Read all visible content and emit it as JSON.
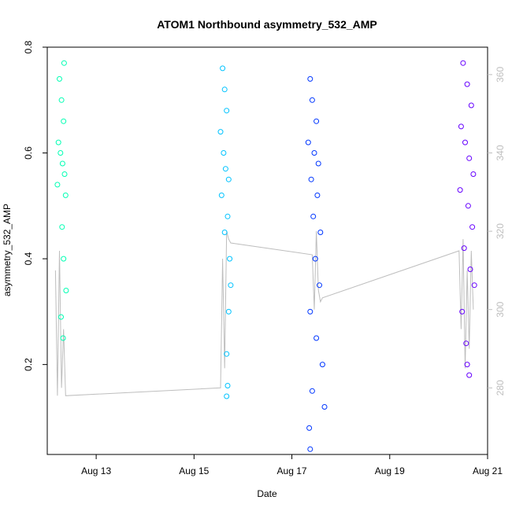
{
  "chart_data": {
    "type": "scatter",
    "title": "ATOM1 Northbound asymmetry_532_AMP",
    "xlabel": "Date",
    "ylabel": "asymmetry_532_AMP",
    "x_range": [
      "2024-08-12T00:00",
      "2024-08-21T00:00"
    ],
    "x_ticks": [
      {
        "x": "2024-08-13T00:00",
        "label": "Aug 13"
      },
      {
        "x": "2024-08-15T00:00",
        "label": "Aug 15"
      },
      {
        "x": "2024-08-17T00:00",
        "label": "Aug 17"
      },
      {
        "x": "2024-08-19T00:00",
        "label": "Aug 19"
      },
      {
        "x": "2024-08-21T00:00",
        "label": "Aug 21"
      }
    ],
    "ylim": [
      0.03,
      0.8
    ],
    "y_ticks": [
      0.2,
      0.4,
      0.6,
      0.8
    ],
    "y2_range": [
      263,
      367
    ],
    "y2_ticks": [
      280,
      300,
      320,
      340,
      360
    ],
    "grid": false,
    "legend": "none",
    "colors": {
      "axis": "#000000",
      "right_axis": "#bebebe",
      "secondary_line": "#bebebe",
      "cluster_1": "#00ffb3",
      "cluster_2": "#00c3ff",
      "cluster_3": "#0036ff",
      "cluster_4": "#6600ff"
    },
    "series": [
      {
        "color": "#00ffb3",
        "points": [
          [
            "2024-08-12T06:00",
            0.74
          ],
          [
            "2024-08-12T07:00",
            0.7
          ],
          [
            "2024-08-12T08:00",
            0.66
          ],
          [
            "2024-08-12T05:30",
            0.62
          ],
          [
            "2024-08-12T06:30",
            0.6
          ],
          [
            "2024-08-12T07:30",
            0.58
          ],
          [
            "2024-08-12T08:30",
            0.56
          ],
          [
            "2024-08-12T05:00",
            0.54
          ],
          [
            "2024-08-12T09:00",
            0.52
          ],
          [
            "2024-08-12T07:15",
            0.46
          ],
          [
            "2024-08-12T08:00",
            0.4
          ],
          [
            "2024-08-12T06:45",
            0.29
          ],
          [
            "2024-08-12T07:45",
            0.25
          ],
          [
            "2024-08-12T09:15",
            0.34
          ],
          [
            "2024-08-12T08:15",
            0.77
          ]
        ]
      },
      {
        "color": "#00c3ff",
        "points": [
          [
            "2024-08-15T14:00",
            0.76
          ],
          [
            "2024-08-15T15:00",
            0.72
          ],
          [
            "2024-08-15T16:00",
            0.68
          ],
          [
            "2024-08-15T13:00",
            0.64
          ],
          [
            "2024-08-15T14:30",
            0.6
          ],
          [
            "2024-08-15T15:30",
            0.57
          ],
          [
            "2024-08-15T17:00",
            0.55
          ],
          [
            "2024-08-15T13:30",
            0.52
          ],
          [
            "2024-08-15T16:30",
            0.48
          ],
          [
            "2024-08-15T15:00",
            0.45
          ],
          [
            "2024-08-15T17:30",
            0.4
          ],
          [
            "2024-08-15T18:00",
            0.35
          ],
          [
            "2024-08-15T17:00",
            0.3
          ],
          [
            "2024-08-15T16:00",
            0.22
          ],
          [
            "2024-08-15T16:30",
            0.16
          ],
          [
            "2024-08-15T16:00",
            0.14
          ]
        ]
      },
      {
        "color": "#0036ff",
        "points": [
          [
            "2024-08-17T09:00",
            0.74
          ],
          [
            "2024-08-17T10:00",
            0.7
          ],
          [
            "2024-08-17T12:00",
            0.66
          ],
          [
            "2024-08-17T08:00",
            0.62
          ],
          [
            "2024-08-17T11:00",
            0.6
          ],
          [
            "2024-08-17T13:00",
            0.58
          ],
          [
            "2024-08-17T09:30",
            0.55
          ],
          [
            "2024-08-17T12:30",
            0.52
          ],
          [
            "2024-08-17T10:30",
            0.48
          ],
          [
            "2024-08-17T14:00",
            0.45
          ],
          [
            "2024-08-17T11:30",
            0.4
          ],
          [
            "2024-08-17T13:30",
            0.35
          ],
          [
            "2024-08-17T09:00",
            0.3
          ],
          [
            "2024-08-17T12:00",
            0.25
          ],
          [
            "2024-08-17T15:00",
            0.2
          ],
          [
            "2024-08-17T10:00",
            0.15
          ],
          [
            "2024-08-17T16:00",
            0.12
          ],
          [
            "2024-08-17T08:30",
            0.08
          ],
          [
            "2024-08-17T09:00",
            0.04
          ]
        ]
      },
      {
        "color": "#6600ff",
        "points": [
          [
            "2024-08-20T12:00",
            0.77
          ],
          [
            "2024-08-20T14:00",
            0.73
          ],
          [
            "2024-08-20T16:00",
            0.69
          ],
          [
            "2024-08-20T11:00",
            0.65
          ],
          [
            "2024-08-20T13:00",
            0.62
          ],
          [
            "2024-08-20T15:00",
            0.59
          ],
          [
            "2024-08-20T17:00",
            0.56
          ],
          [
            "2024-08-20T10:30",
            0.53
          ],
          [
            "2024-08-20T14:30",
            0.5
          ],
          [
            "2024-08-20T16:30",
            0.46
          ],
          [
            "2024-08-20T12:30",
            0.42
          ],
          [
            "2024-08-20T15:30",
            0.38
          ],
          [
            "2024-08-20T17:30",
            0.35
          ],
          [
            "2024-08-20T11:30",
            0.3
          ],
          [
            "2024-08-20T13:30",
            0.24
          ],
          [
            "2024-08-20T14:00",
            0.2
          ],
          [
            "2024-08-20T15:00",
            0.18
          ]
        ]
      }
    ],
    "secondary_series": {
      "color": "#bebebe",
      "points": [
        [
          "2024-08-12T04:00",
          310
        ],
        [
          "2024-08-12T05:00",
          278
        ],
        [
          "2024-08-12T06:00",
          315
        ],
        [
          "2024-08-12T07:00",
          280
        ],
        [
          "2024-08-12T08:00",
          295
        ],
        [
          "2024-08-12T09:00",
          278
        ],
        [
          "2024-08-15T13:00",
          280
        ],
        [
          "2024-08-15T14:00",
          313
        ],
        [
          "2024-08-15T15:00",
          285
        ],
        [
          "2024-08-15T16:00",
          320
        ],
        [
          "2024-08-15T17:00",
          318
        ],
        [
          "2024-08-15T18:00",
          317
        ],
        [
          "2024-08-17T10:00",
          314
        ],
        [
          "2024-08-17T11:00",
          300
        ],
        [
          "2024-08-17T12:00",
          320
        ],
        [
          "2024-08-17T13:00",
          305
        ],
        [
          "2024-08-17T14:00",
          302
        ],
        [
          "2024-08-17T15:00",
          303
        ],
        [
          "2024-08-20T10:00",
          315
        ],
        [
          "2024-08-20T11:00",
          295
        ],
        [
          "2024-08-20T12:00",
          318
        ],
        [
          "2024-08-20T13:00",
          285
        ],
        [
          "2024-08-20T14:00",
          310
        ],
        [
          "2024-08-20T15:00",
          290
        ],
        [
          "2024-08-20T16:00",
          315
        ],
        [
          "2024-08-20T17:00",
          300
        ]
      ]
    }
  }
}
